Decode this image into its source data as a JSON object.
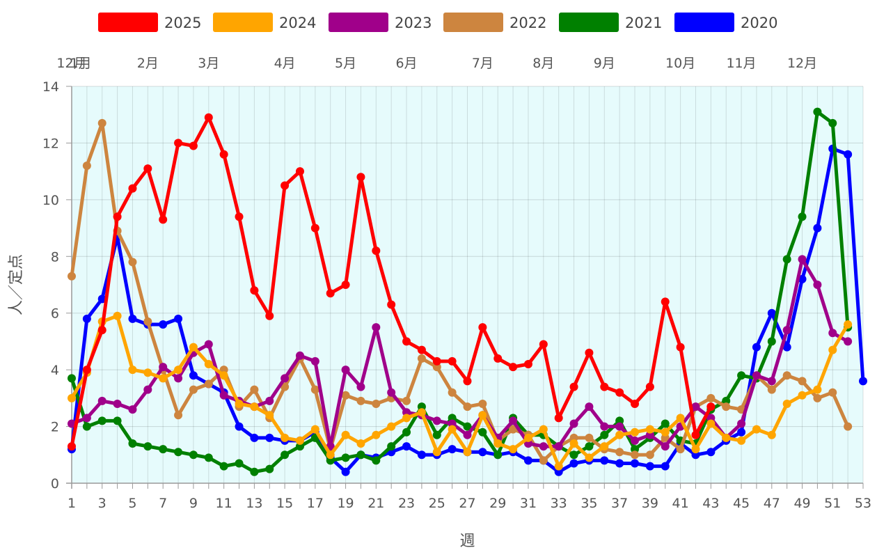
{
  "chart_data": {
    "type": "line",
    "xlabel": "週",
    "ylabel": "人／定点",
    "ylim": [
      0,
      14
    ],
    "y_ticks": [
      0,
      2,
      4,
      6,
      8,
      10,
      12,
      14
    ],
    "x_range": [
      1,
      53
    ],
    "x_tick_labels": [
      "1",
      "3",
      "5",
      "7",
      "9",
      "11",
      "13",
      "15",
      "17",
      "19",
      "21",
      "23",
      "25",
      "27",
      "29",
      "31",
      "33",
      "35",
      "37",
      "39",
      "41",
      "43",
      "45",
      "47",
      "49",
      "51",
      "53"
    ],
    "month_labels": [
      {
        "label": "12月",
        "week": 1
      },
      {
        "label": "1月",
        "week": 1.6
      },
      {
        "label": "2月",
        "week": 6
      },
      {
        "label": "3月",
        "week": 10
      },
      {
        "label": "4月",
        "week": 15
      },
      {
        "label": "5月",
        "week": 19
      },
      {
        "label": "6月",
        "week": 23
      },
      {
        "label": "7月",
        "week": 28
      },
      {
        "label": "8月",
        "week": 32
      },
      {
        "label": "9月",
        "week": 36
      },
      {
        "label": "10月",
        "week": 41
      },
      {
        "label": "11月",
        "week": 45
      },
      {
        "label": "12月",
        "week": 49
      }
    ],
    "grid": true,
    "legend_position": "top",
    "plot_background": "#e6fbfc",
    "series": [
      {
        "name": "2025",
        "color": "#ff0000",
        "values": [
          1.3,
          4.0,
          5.4,
          9.4,
          10.4,
          11.1,
          9.3,
          12.0,
          11.9,
          12.9,
          11.6,
          9.4,
          6.8,
          5.9,
          10.5,
          11.0,
          9.0,
          6.7,
          7.0,
          10.8,
          8.2,
          6.3,
          5.0,
          4.7,
          4.3,
          4.3,
          3.6,
          5.5,
          4.4,
          4.1,
          4.2,
          4.9,
          2.3,
          3.4,
          4.6,
          3.4,
          3.2,
          2.8,
          3.4,
          6.4,
          4.8,
          1.7,
          2.7
        ]
      },
      {
        "name": "2024",
        "color": "#ffa500",
        "values": [
          3.0,
          3.9,
          5.7,
          5.9,
          4.0,
          3.9,
          3.7,
          4.0,
          4.8,
          4.2,
          3.8,
          2.8,
          2.7,
          2.4,
          1.6,
          1.5,
          1.9,
          1.0,
          1.7,
          1.4,
          1.7,
          2.0,
          2.3,
          2.5,
          1.1,
          1.9,
          1.1,
          2.4,
          1.4,
          1.2,
          1.6,
          1.9,
          0.6,
          1.4,
          0.9,
          1.3,
          1.7,
          1.8,
          1.9,
          1.8,
          2.3,
          1.2,
          2.1,
          1.6,
          1.5,
          1.9,
          1.7,
          2.8,
          3.1,
          3.3,
          4.7,
          5.6
        ]
      },
      {
        "name": "2023",
        "color": "#a0008a",
        "values": [
          2.1,
          2.3,
          2.9,
          2.8,
          2.6,
          3.3,
          4.1,
          3.7,
          4.6,
          4.9,
          3.1,
          2.9,
          2.7,
          2.9,
          3.7,
          4.5,
          4.3,
          1.3,
          4.0,
          3.4,
          5.5,
          3.2,
          2.5,
          2.4,
          2.2,
          2.1,
          1.7,
          2.4,
          1.6,
          2.2,
          1.4,
          1.3,
          1.3,
          2.1,
          2.7,
          2.0,
          2.0,
          1.5,
          1.7,
          1.3,
          2.0,
          2.7,
          2.3,
          1.6,
          2.1,
          3.8,
          3.6,
          5.4,
          7.9,
          7.0,
          5.3,
          5.0
        ]
      },
      {
        "name": "2022",
        "color": "#cd853f",
        "values": [
          7.3,
          11.2,
          12.7,
          8.9,
          7.8,
          5.7,
          4.0,
          2.4,
          3.3,
          3.5,
          4.0,
          2.7,
          3.3,
          2.3,
          3.4,
          4.4,
          3.3,
          1.2,
          3.1,
          2.9,
          2.8,
          3.0,
          2.9,
          4.4,
          4.1,
          3.2,
          2.7,
          2.8,
          1.5,
          1.9,
          1.7,
          0.8,
          1.3,
          1.6,
          1.6,
          1.2,
          1.1,
          1.0,
          1.0,
          1.6,
          1.2,
          2.7,
          3.0,
          2.7,
          2.6,
          3.8,
          3.3,
          3.8,
          3.6,
          3.0,
          3.2,
          2.0
        ]
      },
      {
        "name": "2021",
        "color": "#008000",
        "values": [
          3.7,
          2.0,
          2.2,
          2.2,
          1.4,
          1.3,
          1.2,
          1.1,
          1.0,
          0.9,
          0.6,
          0.7,
          0.4,
          0.5,
          1.0,
          1.3,
          1.6,
          0.8,
          0.9,
          1.0,
          0.8,
          1.3,
          1.8,
          2.7,
          1.7,
          2.3,
          2.0,
          1.8,
          1.0,
          2.3,
          1.7,
          1.7,
          1.3,
          1.0,
          1.3,
          1.7,
          2.2,
          1.2,
          1.6,
          2.1,
          1.5,
          1.4,
          2.6,
          2.9,
          3.8,
          3.7,
          5.0,
          7.9,
          9.4,
          13.1,
          12.7,
          5.5
        ]
      },
      {
        "name": "2020",
        "color": "#0000ff",
        "values": [
          1.2,
          5.8,
          6.5,
          8.7,
          5.8,
          5.6,
          5.6,
          5.8,
          3.8,
          3.5,
          3.2,
          2.0,
          1.6,
          1.6,
          1.5,
          1.5,
          1.8,
          0.9,
          0.4,
          1.0,
          0.9,
          1.1,
          1.3,
          1.0,
          1.0,
          1.2,
          1.1,
          1.1,
          1.0,
          1.1,
          0.8,
          0.8,
          0.4,
          0.7,
          0.8,
          0.8,
          0.7,
          0.7,
          0.6,
          0.6,
          1.4,
          1.0,
          1.1,
          1.5,
          1.8,
          4.8,
          6.0,
          4.8,
          7.2,
          9.0,
          11.8,
          11.6,
          3.6
        ]
      }
    ]
  }
}
